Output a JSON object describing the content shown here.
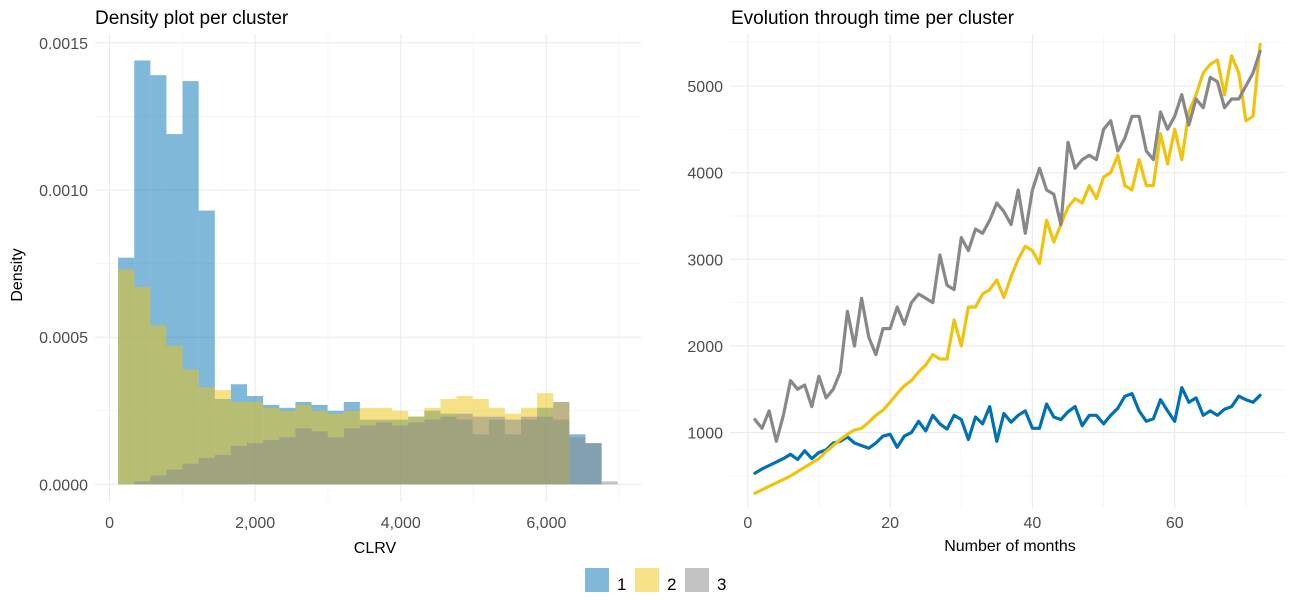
{
  "chart_data": [
    {
      "type": "histogram",
      "title": "Density plot per cluster",
      "xlabel": "CLRV",
      "ylabel": "Density",
      "xlim": [
        -200,
        7300
      ],
      "ylim": [
        -6e-05,
        0.00153
      ],
      "x_ticks": [
        0,
        2000,
        4000,
        6000
      ],
      "x_tick_labels": [
        "0",
        "2,000",
        "4,000",
        "6,000"
      ],
      "y_ticks": [
        0,
        0.0005,
        0.001,
        0.0015
      ],
      "y_tick_labels": [
        "0.0000",
        "0.0005",
        "0.0010",
        "0.0015"
      ],
      "grid": true,
      "stacked": false,
      "bin_edges": [
        117,
        339,
        560,
        781,
        1003,
        1224,
        1446,
        1667,
        1888,
        2110,
        2331,
        2553,
        2774,
        2995,
        3217,
        3438,
        3659,
        3881,
        4102,
        4324,
        4545,
        4766,
        4988,
        5209,
        5430,
        5652,
        5873,
        6095,
        6316,
        6537,
        6759,
        6980
      ],
      "series": [
        {
          "name": "1",
          "color": "#0072B2",
          "values": [
            0.00077,
            0.00144,
            0.00139,
            0.00119,
            0.00137,
            0.00093,
            0.00029,
            0.00034,
            0.0003,
            0.00027,
            0.00026,
            0.00028,
            0.00027,
            0.00025,
            0.00028,
            0.00022,
            0.00022,
            0.00022,
            0.00023,
            0.00025,
            0.00024,
            0.00022,
            0.00017,
            0.00022,
            0.00017,
            0.00022,
            0.00026,
            0.00022,
            0.00017,
            0.00014,
            0.0
          ]
        },
        {
          "name": "2",
          "color": "#F0C30F",
          "values": [
            0.00073,
            0.00067,
            0.00054,
            0.00047,
            0.00039,
            0.00033,
            0.00032,
            0.00028,
            0.00028,
            0.00026,
            0.00025,
            0.00027,
            0.00025,
            0.00024,
            0.00025,
            0.00026,
            0.00026,
            0.00025,
            0.00023,
            0.00026,
            0.00029,
            0.0003,
            0.00029,
            0.00026,
            0.00024,
            0.00026,
            0.00031,
            0.00028,
            0.0,
            0.0,
            0.0
          ]
        },
        {
          "name": "3",
          "color": "#888888",
          "values": [
            0.0,
            1e-05,
            3e-05,
            5e-05,
            7e-05,
            9e-05,
            0.0001,
            0.00013,
            0.00014,
            0.00015,
            0.00016,
            0.00019,
            0.00018,
            0.00016,
            0.00019,
            0.0002,
            0.00021,
            0.0002,
            0.00021,
            0.00022,
            0.00023,
            0.00024,
            0.00023,
            0.00023,
            0.00022,
            0.00023,
            0.00023,
            0.00028,
            0.00016,
            0.00014,
            1e-05
          ]
        }
      ]
    },
    {
      "type": "line",
      "title": "Evolution through time per cluster",
      "xlabel": "Number of months",
      "ylabel": "",
      "xlim": [
        -2.5,
        75.5
      ],
      "ylim": [
        130,
        5600
      ],
      "x_ticks": [
        0,
        20,
        40,
        60
      ],
      "x_tick_labels": [
        "0",
        "20",
        "40",
        "60"
      ],
      "y_ticks": [
        1000,
        2000,
        3000,
        4000,
        5000
      ],
      "y_tick_labels": [
        "1000",
        "2000",
        "3000",
        "4000",
        "5000"
      ],
      "grid": true,
      "x": [
        1,
        2,
        3,
        4,
        5,
        6,
        7,
        8,
        9,
        10,
        11,
        12,
        13,
        14,
        15,
        16,
        17,
        18,
        19,
        20,
        21,
        22,
        23,
        24,
        25,
        26,
        27,
        28,
        29,
        30,
        31,
        32,
        33,
        34,
        35,
        36,
        37,
        38,
        39,
        40,
        41,
        42,
        43,
        44,
        45,
        46,
        47,
        48,
        49,
        50,
        51,
        52,
        53,
        54,
        55,
        56,
        57,
        58,
        59,
        60,
        61,
        62,
        63,
        64,
        65,
        66,
        67,
        68,
        69,
        70,
        71,
        72
      ],
      "series": [
        {
          "name": "1",
          "color": "#0072B2",
          "values": [
            530,
            580,
            620,
            660,
            700,
            750,
            690,
            790,
            700,
            770,
            800,
            880,
            900,
            950,
            880,
            850,
            820,
            880,
            960,
            980,
            830,
            960,
            1000,
            1130,
            1020,
            1200,
            1100,
            1040,
            1200,
            1150,
            920,
            1180,
            1100,
            1300,
            900,
            1220,
            1120,
            1200,
            1250,
            1050,
            1050,
            1330,
            1180,
            1150,
            1240,
            1300,
            1080,
            1200,
            1200,
            1100,
            1200,
            1280,
            1420,
            1450,
            1250,
            1130,
            1160,
            1380,
            1250,
            1130,
            1520,
            1350,
            1400,
            1200,
            1250,
            1200,
            1270,
            1300,
            1420,
            1380,
            1350,
            1430
          ]
        },
        {
          "name": "2",
          "color": "#F0C30F",
          "values": [
            300,
            340,
            380,
            420,
            460,
            500,
            550,
            600,
            650,
            700,
            780,
            850,
            920,
            980,
            1030,
            1050,
            1120,
            1200,
            1260,
            1350,
            1450,
            1540,
            1600,
            1700,
            1780,
            1900,
            1850,
            1850,
            2300,
            2000,
            2450,
            2450,
            2600,
            2650,
            2760,
            2560,
            2800,
            3000,
            3150,
            3100,
            2950,
            3450,
            3200,
            3400,
            3600,
            3700,
            3650,
            3850,
            3700,
            3950,
            4000,
            4200,
            3850,
            3800,
            4150,
            3850,
            3850,
            4450,
            4100,
            4500,
            4150,
            4700,
            4900,
            5150,
            5250,
            5300,
            4900,
            5350,
            5150,
            4600,
            4650,
            5480
          ]
        },
        {
          "name": "3",
          "color": "#888888",
          "values": [
            1150,
            1050,
            1250,
            900,
            1200,
            1600,
            1500,
            1550,
            1300,
            1650,
            1400,
            1500,
            1700,
            2400,
            2000,
            2550,
            2100,
            1900,
            2200,
            2200,
            2450,
            2250,
            2500,
            2600,
            2550,
            2500,
            3050,
            2700,
            2650,
            3250,
            3100,
            3350,
            3300,
            3450,
            3650,
            3550,
            3400,
            3800,
            3300,
            3800,
            4050,
            3800,
            3750,
            3400,
            4350,
            4050,
            4150,
            4200,
            4150,
            4500,
            4600,
            4250,
            4400,
            4650,
            4650,
            4250,
            4150,
            4700,
            4500,
            4650,
            4900,
            4550,
            4850,
            4750,
            5100,
            5050,
            4750,
            4850,
            4850,
            5000,
            5150,
            5400
          ]
        }
      ]
    }
  ],
  "legend": {
    "position": "bottom",
    "items": [
      {
        "label": "1",
        "color": "#0072B2"
      },
      {
        "label": "2",
        "color": "#F0C30F"
      },
      {
        "label": "3",
        "color": "#888888"
      }
    ]
  }
}
